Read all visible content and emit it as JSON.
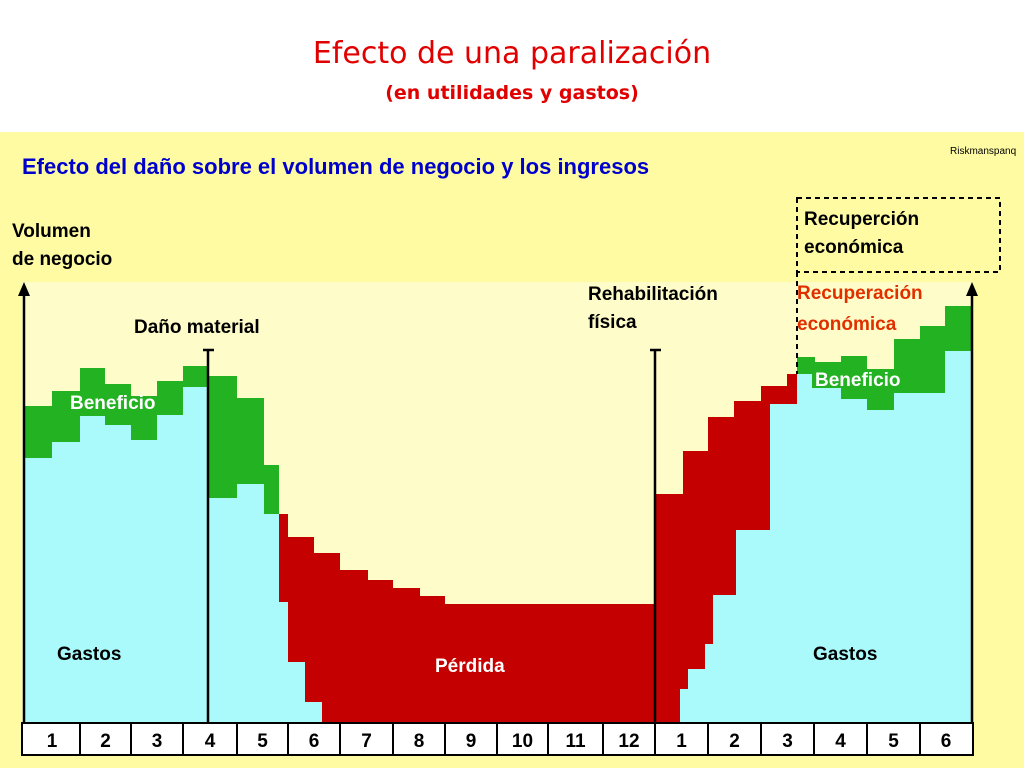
{
  "slide": {
    "title": "Efecto de una paralización",
    "subtitle": "(en utilidades y gastos)"
  },
  "diagram": {
    "heading": "Efecto del daño sobre el volumen de negocio y los ingresos",
    "credit": "Riskmanspanq",
    "axis_label_line1": "Volumen",
    "axis_label_line2": "de negocio",
    "event_damage": "Daño material",
    "event_rehab_line1": "Rehabilitación",
    "event_rehab_line2": "física",
    "recovery_box_line1": "Recuperción",
    "recovery_box_line2": "económica",
    "recovery_red_line1": "Recuperación",
    "recovery_red_line2": "económica",
    "label_profit_left": "Beneficio",
    "label_profit_right": "Beneficio",
    "label_expenses_left": "Gastos",
    "label_expenses_right": "Gastos",
    "label_loss": "Pérdida",
    "periods": [
      "1",
      "2",
      "3",
      "4",
      "5",
      "6",
      "7",
      "8",
      "9",
      "10",
      "11",
      "12",
      "1",
      "2",
      "3",
      "4",
      "5",
      "6"
    ],
    "colors": {
      "background": "#fefba2",
      "expenses": "#aaf9fb",
      "profit": "#22b222",
      "loss": "#c40000",
      "heading": "#0000cc",
      "title": "#e00000"
    }
  }
}
